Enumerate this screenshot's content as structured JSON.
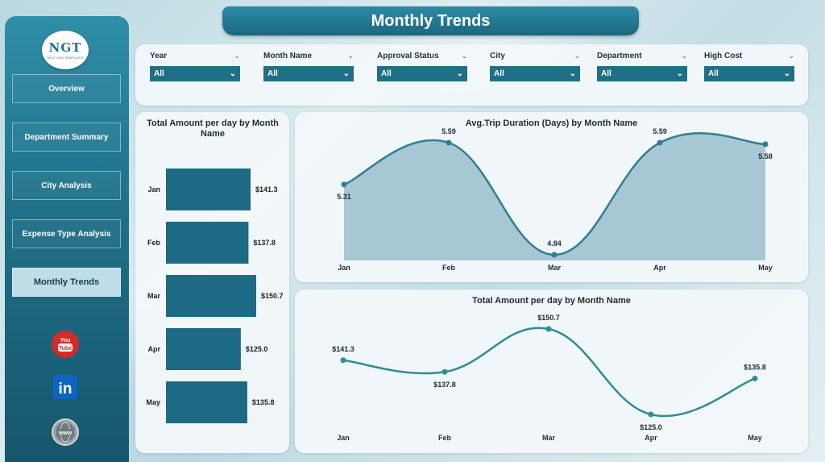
{
  "title": "Monthly Trends",
  "logo": {
    "text": "NGT",
    "subtitle": "NEXT GEN TEMPLATES"
  },
  "nav": [
    {
      "label": "Overview",
      "active": false
    },
    {
      "label": "Department Summary",
      "active": false
    },
    {
      "label": "City Analysis",
      "active": false
    },
    {
      "label": "Expense Type Analysis",
      "active": false
    },
    {
      "label": "Monthly Trends",
      "active": true
    }
  ],
  "social": [
    {
      "icon": "youtube-icon",
      "text": "You Tube"
    },
    {
      "icon": "linkedin-icon",
      "text": "in"
    },
    {
      "icon": "globe-icon",
      "text": "www"
    }
  ],
  "filters": [
    {
      "label": "Year",
      "value": "All"
    },
    {
      "label": "Month Name",
      "value": "All"
    },
    {
      "label": "Approval Status",
      "value": "All"
    },
    {
      "label": "City",
      "value": "All"
    },
    {
      "label": "Department",
      "value": "All"
    },
    {
      "label": "High Cost",
      "value": "All"
    }
  ],
  "colors": {
    "accent": "#1f6f88",
    "bar": "#1e6a84",
    "line": "#2f7f93",
    "line2": "#2f8d98",
    "area": "#8fb7c7"
  },
  "chart_data": [
    {
      "type": "bar",
      "orientation": "horizontal",
      "title": "Total Amount per day by Month Name",
      "categories": [
        "Jan",
        "Feb",
        "Mar",
        "Apr",
        "May"
      ],
      "values": [
        141.3,
        137.8,
        150.7,
        125.0,
        135.8
      ],
      "labels": [
        "$141.3",
        "$137.8",
        "$150.7",
        "$125.0",
        "$135.8"
      ]
    },
    {
      "type": "area",
      "title": "Avg.Trip Duration (Days) by Month Name",
      "categories": [
        "Jan",
        "Feb",
        "Mar",
        "Apr",
        "May"
      ],
      "values": [
        5.31,
        5.59,
        4.84,
        5.59,
        5.58
      ],
      "labels": [
        "5.31",
        "5.59",
        "4.84",
        "5.59",
        "5.58"
      ]
    },
    {
      "type": "line",
      "title": "Total Amount per day by Month Name",
      "categories": [
        "Jan",
        "Feb",
        "Mar",
        "Apr",
        "May"
      ],
      "values": [
        141.3,
        137.8,
        150.7,
        125.0,
        135.8
      ],
      "labels": [
        "$141.3",
        "$137.8",
        "$150.7",
        "$125.0",
        "$135.8"
      ]
    }
  ]
}
